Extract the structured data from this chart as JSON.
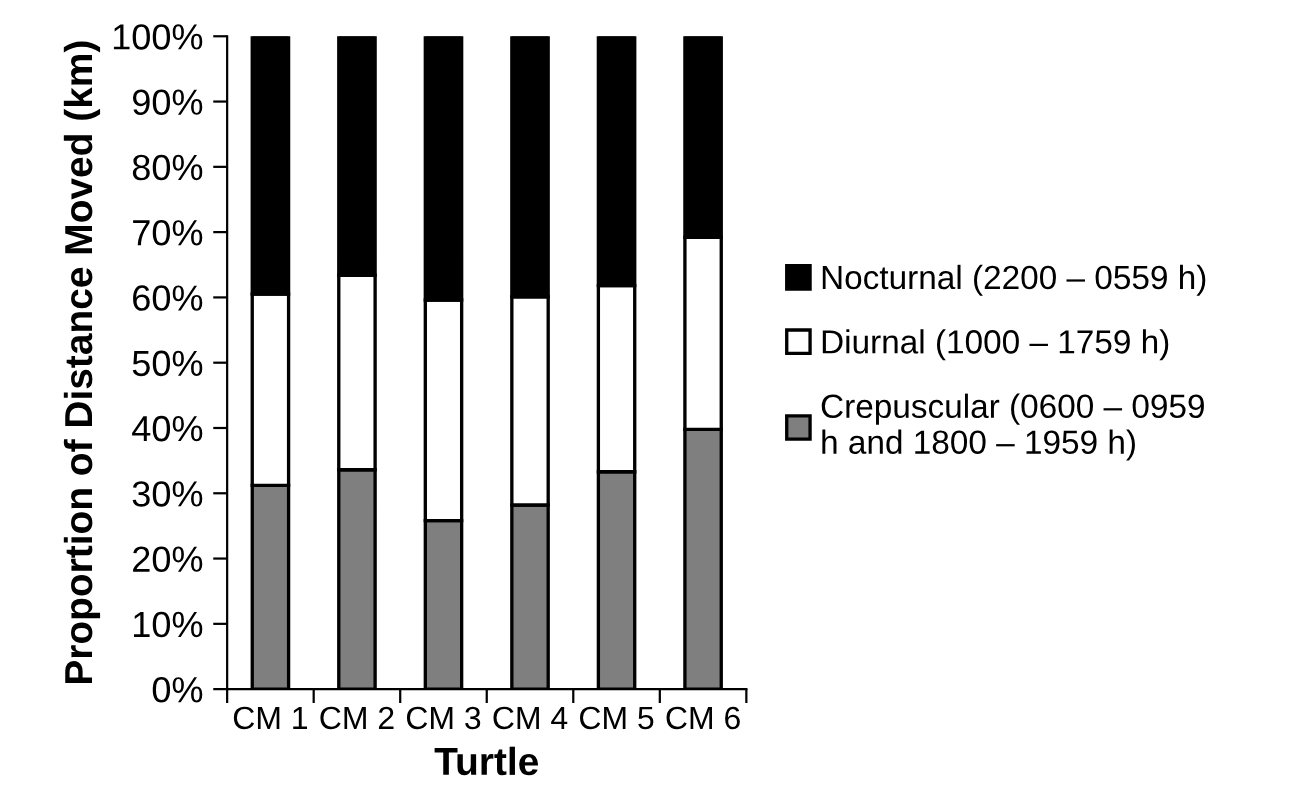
{
  "chart_data": {
    "type": "bar",
    "stacked": true,
    "xlabel": "Turtle",
    "ylabel": "Proportion of Distance Moved (km)",
    "categories": [
      "CM 1",
      "CM 2",
      "CM 3",
      "CM 4",
      "CM 5",
      "CM 6"
    ],
    "series": [
      {
        "name": "Crepuscular (0600 – 0959\nh and 1800 – 1959 h)",
        "color": "#7f7f7f",
        "values": [
          31.2,
          33.6,
          25.8,
          28.2,
          33.3,
          39.8
        ]
      },
      {
        "name": "Diurnal (1000 – 1759 h)",
        "color": "#ffffff",
        "values": [
          29.3,
          29.8,
          33.8,
          31.9,
          28.5,
          29.4
        ]
      },
      {
        "name": "Nocturnal (2200 – 0559 h)",
        "color": "#000000",
        "values": [
          39.5,
          36.6,
          40.4,
          39.9,
          38.2,
          30.8
        ]
      }
    ],
    "ylim": [
      0,
      100
    ],
    "yticks": [
      {
        "value": 0,
        "label": "0%"
      },
      {
        "value": 10,
        "label": "10%"
      },
      {
        "value": 20,
        "label": "20%"
      },
      {
        "value": 30,
        "label": "30%"
      },
      {
        "value": 40,
        "label": "40%"
      },
      {
        "value": 50,
        "label": "50%"
      },
      {
        "value": 60,
        "label": "60%"
      },
      {
        "value": 70,
        "label": "70%"
      },
      {
        "value": 80,
        "label": "80%"
      },
      {
        "value": 90,
        "label": "90%"
      },
      {
        "value": 100,
        "label": "100%"
      }
    ],
    "grid": false,
    "legend": "right"
  }
}
